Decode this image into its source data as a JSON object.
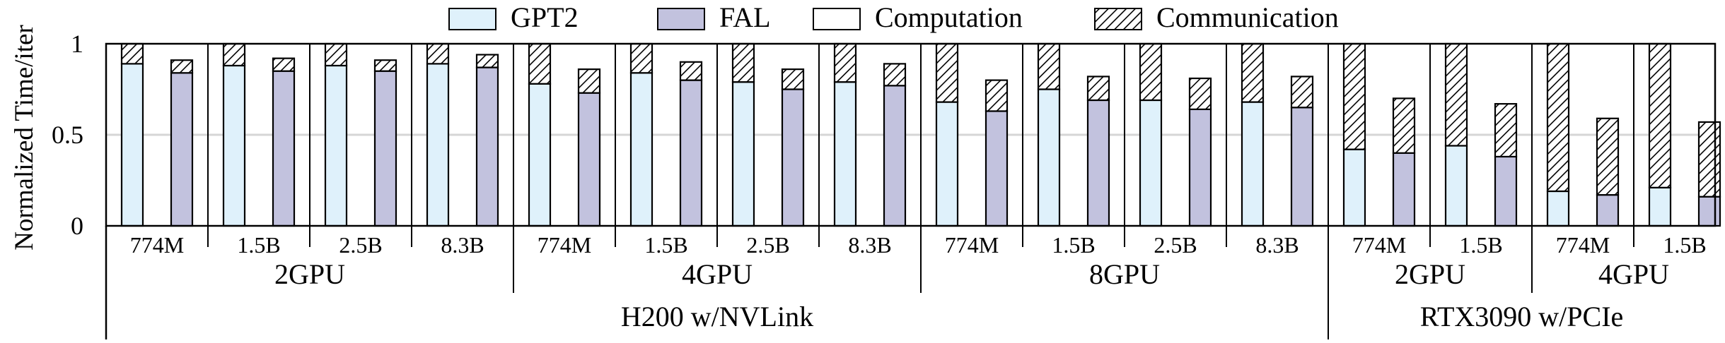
{
  "chart_data": {
    "type": "bar",
    "stacked": true,
    "ylabel": "Normalized Time/iter",
    "ylim": [
      0,
      1
    ],
    "yticks": [
      "0",
      "0.5",
      "1"
    ],
    "grid": "horizontal at 0.5",
    "legend": {
      "placement": "top-center",
      "entries": [
        "GPT2",
        "FAL",
        "Computation",
        "Communication"
      ]
    },
    "colors": {
      "gpt2": "#dff1fb",
      "fal": "#c2c2de",
      "gridline": "#d6d6d6"
    },
    "platforms": [
      {
        "label": "H200 w/NVLink",
        "groups": [
          "2GPU",
          "4GPU",
          "8GPU"
        ]
      },
      {
        "label": "RTX3090 w/PCIe",
        "groups": [
          "2GPU",
          "4GPU"
        ]
      }
    ],
    "groups": [
      {
        "label": "2GPU",
        "categories": [
          {
            "label": "774M",
            "gpt2": {
              "computation": 0.89,
              "communication": 0.11
            },
            "fal": {
              "computation": 0.84,
              "communication": 0.07
            }
          },
          {
            "label": "1.5B",
            "gpt2": {
              "computation": 0.88,
              "communication": 0.12
            },
            "fal": {
              "computation": 0.85,
              "communication": 0.07
            }
          },
          {
            "label": "2.5B",
            "gpt2": {
              "computation": 0.88,
              "communication": 0.12
            },
            "fal": {
              "computation": 0.85,
              "communication": 0.06
            }
          },
          {
            "label": "8.3B",
            "gpt2": {
              "computation": 0.89,
              "communication": 0.11
            },
            "fal": {
              "computation": 0.87,
              "communication": 0.07
            }
          }
        ]
      },
      {
        "label": "4GPU",
        "categories": [
          {
            "label": "774M",
            "gpt2": {
              "computation": 0.78,
              "communication": 0.22
            },
            "fal": {
              "computation": 0.73,
              "communication": 0.13
            }
          },
          {
            "label": "1.5B",
            "gpt2": {
              "computation": 0.84,
              "communication": 0.16
            },
            "fal": {
              "computation": 0.8,
              "communication": 0.1
            }
          },
          {
            "label": "2.5B",
            "gpt2": {
              "computation": 0.79,
              "communication": 0.21
            },
            "fal": {
              "computation": 0.75,
              "communication": 0.11
            }
          },
          {
            "label": "8.3B",
            "gpt2": {
              "computation": 0.79,
              "communication": 0.21
            },
            "fal": {
              "computation": 0.77,
              "communication": 0.12
            }
          }
        ]
      },
      {
        "label": "8GPU",
        "categories": [
          {
            "label": "774M",
            "gpt2": {
              "computation": 0.68,
              "communication": 0.32
            },
            "fal": {
              "computation": 0.63,
              "communication": 0.17
            }
          },
          {
            "label": "1.5B",
            "gpt2": {
              "computation": 0.75,
              "communication": 0.25
            },
            "fal": {
              "computation": 0.69,
              "communication": 0.13
            }
          },
          {
            "label": "2.5B",
            "gpt2": {
              "computation": 0.69,
              "communication": 0.31
            },
            "fal": {
              "computation": 0.64,
              "communication": 0.17
            }
          },
          {
            "label": "8.3B",
            "gpt2": {
              "computation": 0.68,
              "communication": 0.32
            },
            "fal": {
              "computation": 0.65,
              "communication": 0.17
            }
          }
        ]
      },
      {
        "label": "2GPU",
        "categories": [
          {
            "label": "774M",
            "gpt2": {
              "computation": 0.42,
              "communication": 0.58
            },
            "fal": {
              "computation": 0.4,
              "communication": 0.3
            }
          },
          {
            "label": "1.5B",
            "gpt2": {
              "computation": 0.44,
              "communication": 0.56
            },
            "fal": {
              "computation": 0.38,
              "communication": 0.29
            }
          }
        ]
      },
      {
        "label": "4GPU",
        "categories": [
          {
            "label": "774M",
            "gpt2": {
              "computation": 0.19,
              "communication": 0.81
            },
            "fal": {
              "computation": 0.17,
              "communication": 0.42
            }
          },
          {
            "label": "1.5B",
            "gpt2": {
              "computation": 0.21,
              "communication": 0.79
            },
            "fal": {
              "computation": 0.16,
              "communication": 0.41
            }
          }
        ]
      }
    ]
  }
}
